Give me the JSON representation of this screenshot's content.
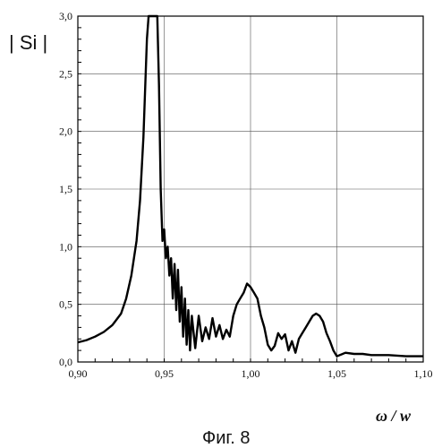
{
  "chart_data": {
    "type": "line",
    "title": "",
    "ylabel": "| Si |",
    "xlabel": "ω / w",
    "caption": "Фиг. 8",
    "xlim": [
      0.9,
      1.1
    ],
    "ylim": [
      0.0,
      3.0
    ],
    "x_ticks": [
      "0,90",
      "0,95",
      "1,00",
      "1,05",
      "1,10"
    ],
    "y_ticks": [
      "0,0",
      "0,5",
      "1,0",
      "1,5",
      "2,0",
      "2,5",
      "3,0"
    ],
    "grid": true,
    "series": [
      {
        "name": "",
        "color": "#000000",
        "x": [
          0.9,
          0.905,
          0.91,
          0.915,
          0.92,
          0.925,
          0.928,
          0.931,
          0.934,
          0.936,
          0.938,
          0.94,
          0.941,
          0.942,
          0.944,
          0.946,
          0.947,
          0.948,
          0.949,
          0.95,
          0.951,
          0.952,
          0.953,
          0.954,
          0.955,
          0.956,
          0.957,
          0.958,
          0.959,
          0.96,
          0.961,
          0.962,
          0.963,
          0.964,
          0.965,
          0.966,
          0.968,
          0.97,
          0.972,
          0.974,
          0.976,
          0.978,
          0.98,
          0.982,
          0.984,
          0.986,
          0.988,
          0.99,
          0.992,
          0.994,
          0.996,
          0.998,
          1.0,
          1.002,
          1.004,
          1.006,
          1.008,
          1.01,
          1.012,
          1.014,
          1.016,
          1.018,
          1.02,
          1.022,
          1.024,
          1.026,
          1.028,
          1.03,
          1.032,
          1.034,
          1.036,
          1.038,
          1.04,
          1.042,
          1.044,
          1.046,
          1.048,
          1.05,
          1.055,
          1.06,
          1.065,
          1.07,
          1.08,
          1.09,
          1.1
        ],
        "y": [
          0.17,
          0.19,
          0.22,
          0.26,
          0.32,
          0.42,
          0.55,
          0.75,
          1.05,
          1.4,
          1.95,
          2.8,
          3.0,
          3.0,
          3.0,
          3.0,
          2.4,
          1.5,
          1.05,
          1.15,
          0.9,
          1.0,
          0.75,
          0.9,
          0.55,
          0.85,
          0.45,
          0.8,
          0.35,
          0.65,
          0.22,
          0.55,
          0.15,
          0.45,
          0.1,
          0.4,
          0.12,
          0.4,
          0.18,
          0.3,
          0.2,
          0.38,
          0.22,
          0.32,
          0.2,
          0.28,
          0.22,
          0.4,
          0.5,
          0.55,
          0.6,
          0.68,
          0.65,
          0.6,
          0.55,
          0.4,
          0.3,
          0.15,
          0.1,
          0.14,
          0.25,
          0.2,
          0.24,
          0.1,
          0.18,
          0.08,
          0.2,
          0.25,
          0.3,
          0.35,
          0.4,
          0.42,
          0.4,
          0.35,
          0.25,
          0.18,
          0.1,
          0.05,
          0.08,
          0.07,
          0.07,
          0.06,
          0.06,
          0.05,
          0.05
        ]
      }
    ]
  }
}
